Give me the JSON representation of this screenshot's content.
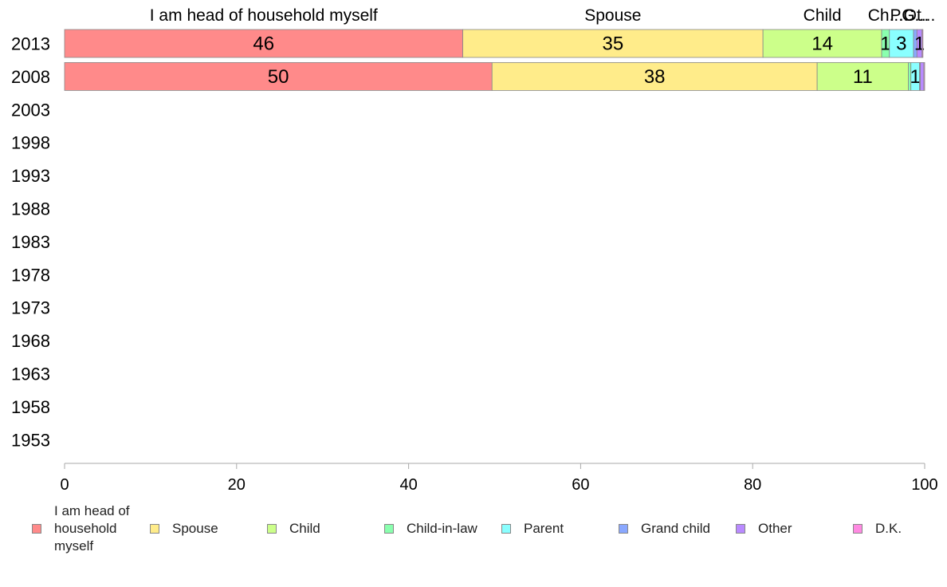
{
  "chart_data": {
    "type": "bar",
    "orientation": "horizontal",
    "stacked": true,
    "categories": [
      "2013",
      "2008",
      "2003",
      "1998",
      "1993",
      "1988",
      "1983",
      "1978",
      "1973",
      "1968",
      "1963",
      "1958",
      "1953"
    ],
    "xlim": [
      0,
      100
    ],
    "xticks": [
      0,
      20,
      40,
      60,
      80,
      100
    ],
    "grid": false,
    "legend_position": "bottom",
    "top_labels": [
      "I am head of household myself",
      "Spouse",
      "Child",
      "Ch...",
      "P...",
      "G...",
      "Ot..."
    ],
    "series": [
      {
        "name": "I am head of household myself",
        "color": "#FF8A8A",
        "values": [
          46.3,
          49.7,
          null,
          null,
          null,
          null,
          null,
          null,
          null,
          null,
          null,
          null,
          null
        ],
        "labels": [
          "46",
          "50"
        ]
      },
      {
        "name": "Spouse",
        "color": "#FFEC8A",
        "values": [
          34.9,
          37.8,
          null,
          null,
          null,
          null,
          null,
          null,
          null,
          null,
          null,
          null,
          null
        ],
        "labels": [
          "35",
          "38"
        ]
      },
      {
        "name": "Child",
        "color": "#CCFF8A",
        "values": [
          13.8,
          10.6,
          null,
          null,
          null,
          null,
          null,
          null,
          null,
          null,
          null,
          null,
          null
        ],
        "labels": [
          "14",
          "11"
        ]
      },
      {
        "name": "Child-in-law",
        "color": "#8AFFAE",
        "values": [
          0.9,
          0.3,
          null,
          null,
          null,
          null,
          null,
          null,
          null,
          null,
          null,
          null,
          null
        ],
        "labels": [
          "1",
          ""
        ]
      },
      {
        "name": "Parent",
        "color": "#8AFFFF",
        "values": [
          2.8,
          1.0,
          null,
          null,
          null,
          null,
          null,
          null,
          null,
          null,
          null,
          null,
          null
        ],
        "labels": [
          "3",
          "1"
        ]
      },
      {
        "name": "Grand child",
        "color": "#8AA8FF",
        "values": [
          0.4,
          0.1,
          null,
          null,
          null,
          null,
          null,
          null,
          null,
          null,
          null,
          null,
          null
        ],
        "labels": [
          "",
          ""
        ]
      },
      {
        "name": "Other",
        "color": "#B98AFF",
        "values": [
          0.6,
          0.4,
          null,
          null,
          null,
          null,
          null,
          null,
          null,
          null,
          null,
          null,
          null
        ],
        "labels": [
          "1",
          ""
        ]
      },
      {
        "name": "D.K.",
        "color": "#FF8AE2",
        "values": [
          0.1,
          0.1,
          null,
          null,
          null,
          null,
          null,
          null,
          null,
          null,
          null,
          null,
          null
        ],
        "labels": [
          "",
          ""
        ]
      }
    ],
    "legend": {
      "items": [
        {
          "label": "I am head of household myself",
          "color": "#FF8A8A"
        },
        {
          "label": "Spouse",
          "color": "#FFEC8A"
        },
        {
          "label": "Child",
          "color": "#CCFF8A"
        },
        {
          "label": "Child-in-law",
          "color": "#8AFFAE"
        },
        {
          "label": "Parent",
          "color": "#8AFFFF"
        },
        {
          "label": "Grand child",
          "color": "#8AA8FF"
        },
        {
          "label": "Other",
          "color": "#B98AFF"
        },
        {
          "label": "D.K.",
          "color": "#FF8AE2"
        }
      ]
    }
  }
}
